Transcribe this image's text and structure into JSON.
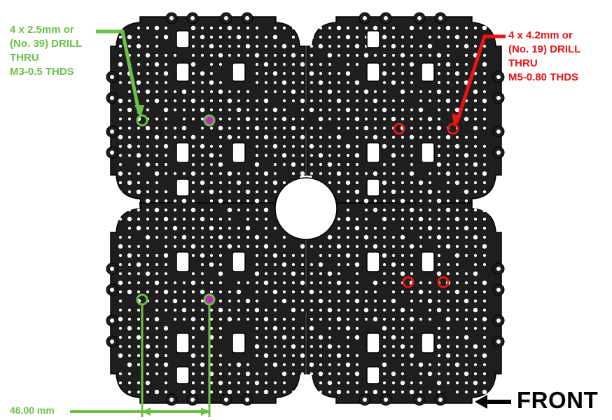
{
  "annotations": {
    "left_note": "4 x 2.5mm or\n(No. 39) DRILL\nTHRU\nM3-0.5 THDS",
    "right_note": "4 x 4.2mm or\n(No. 19) DRILL\nTHRU\nM5-0.80 THDS",
    "dimension": "46.00 mm",
    "front": "FRONT"
  },
  "colors": {
    "plate": "#1e1e1e",
    "plate_edge": "#000000",
    "hole": "#ffffff",
    "green": "#6cc04a",
    "red": "#e81416",
    "magenta": "#c02bc0"
  },
  "drawing": {
    "plate_layout": "2 x 2 grid of cross-shaped plates with central round cutout",
    "green_markers": 4,
    "green_filled_markers": 2,
    "red_markers": 4
  }
}
